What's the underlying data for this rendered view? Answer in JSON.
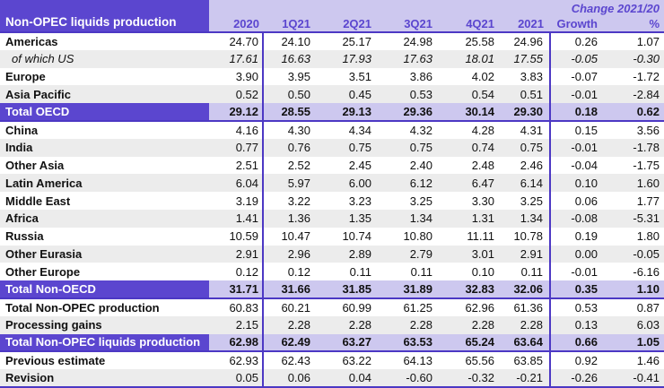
{
  "chart_data": {
    "type": "table",
    "title": "Non-OPEC liquids production",
    "change_group_header": "Change 2021/20",
    "columns": [
      "2020",
      "1Q21",
      "2Q21",
      "3Q21",
      "4Q21",
      "2021",
      "Growth",
      "%"
    ],
    "rows": [
      {
        "label": "Americas",
        "variant": "plain",
        "sep_after": false,
        "values": [
          "24.70",
          "24.10",
          "25.17",
          "24.98",
          "25.58",
          "24.96",
          "0.26",
          "1.07"
        ]
      },
      {
        "label": "of which US",
        "variant": "italic-shaded",
        "sep_after": false,
        "values": [
          "17.61",
          "16.63",
          "17.93",
          "17.63",
          "18.01",
          "17.55",
          "-0.05",
          "-0.30"
        ]
      },
      {
        "label": "Europe",
        "variant": "plain",
        "sep_after": false,
        "values": [
          "3.90",
          "3.95",
          "3.51",
          "3.86",
          "4.02",
          "3.83",
          "-0.07",
          "-1.72"
        ]
      },
      {
        "label": "Asia Pacific",
        "variant": "shaded",
        "sep_after": false,
        "values": [
          "0.52",
          "0.50",
          "0.45",
          "0.53",
          "0.54",
          "0.51",
          "-0.01",
          "-2.84"
        ]
      },
      {
        "label": "Total OECD",
        "variant": "total",
        "sep_after": true,
        "values": [
          "29.12",
          "28.55",
          "29.13",
          "29.36",
          "30.14",
          "29.30",
          "0.18",
          "0.62"
        ]
      },
      {
        "label": "China",
        "variant": "plain",
        "sep_after": false,
        "values": [
          "4.16",
          "4.30",
          "4.34",
          "4.32",
          "4.28",
          "4.31",
          "0.15",
          "3.56"
        ]
      },
      {
        "label": "India",
        "variant": "shaded",
        "sep_after": false,
        "values": [
          "0.77",
          "0.76",
          "0.75",
          "0.75",
          "0.74",
          "0.75",
          "-0.01",
          "-1.78"
        ]
      },
      {
        "label": "Other Asia",
        "variant": "plain",
        "sep_after": false,
        "values": [
          "2.51",
          "2.52",
          "2.45",
          "2.40",
          "2.48",
          "2.46",
          "-0.04",
          "-1.75"
        ]
      },
      {
        "label": "Latin America",
        "variant": "shaded",
        "sep_after": false,
        "values": [
          "6.04",
          "5.97",
          "6.00",
          "6.12",
          "6.47",
          "6.14",
          "0.10",
          "1.60"
        ]
      },
      {
        "label": "Middle East",
        "variant": "plain",
        "sep_after": false,
        "values": [
          "3.19",
          "3.22",
          "3.23",
          "3.25",
          "3.30",
          "3.25",
          "0.06",
          "1.77"
        ]
      },
      {
        "label": "Africa",
        "variant": "shaded",
        "sep_after": false,
        "values": [
          "1.41",
          "1.36",
          "1.35",
          "1.34",
          "1.31",
          "1.34",
          "-0.08",
          "-5.31"
        ]
      },
      {
        "label": "Russia",
        "variant": "plain",
        "sep_after": false,
        "values": [
          "10.59",
          "10.47",
          "10.74",
          "10.80",
          "11.11",
          "10.78",
          "0.19",
          "1.80"
        ]
      },
      {
        "label": "Other Eurasia",
        "variant": "shaded",
        "sep_after": false,
        "values": [
          "2.91",
          "2.96",
          "2.89",
          "2.79",
          "3.01",
          "2.91",
          "0.00",
          "-0.05"
        ]
      },
      {
        "label": "Other Europe",
        "variant": "plain",
        "sep_after": false,
        "values": [
          "0.12",
          "0.12",
          "0.11",
          "0.11",
          "0.10",
          "0.11",
          "-0.01",
          "-6.16"
        ]
      },
      {
        "label": "Total Non-OECD",
        "variant": "total",
        "sep_after": true,
        "values": [
          "31.71",
          "31.66",
          "31.85",
          "31.89",
          "32.83",
          "32.06",
          "0.35",
          "1.10"
        ]
      },
      {
        "label": "Total Non-OPEC production",
        "variant": "plain",
        "sep_after": false,
        "values": [
          "60.83",
          "60.21",
          "60.99",
          "61.25",
          "62.96",
          "61.36",
          "0.53",
          "0.87"
        ]
      },
      {
        "label": "Processing gains",
        "variant": "shaded",
        "sep_after": false,
        "values": [
          "2.15",
          "2.28",
          "2.28",
          "2.28",
          "2.28",
          "2.28",
          "0.13",
          "6.03"
        ]
      },
      {
        "label": "Total Non-OPEC liquids production",
        "variant": "total",
        "sep_after": true,
        "values": [
          "62.98",
          "62.49",
          "63.27",
          "63.53",
          "65.24",
          "63.64",
          "0.66",
          "1.05"
        ]
      },
      {
        "label": "Previous estimate",
        "variant": "plain",
        "sep_after": false,
        "values": [
          "62.93",
          "62.43",
          "63.22",
          "64.13",
          "65.56",
          "63.85",
          "0.92",
          "1.46"
        ]
      },
      {
        "label": "Revision",
        "variant": "shaded",
        "sep_after": false,
        "values": [
          "0.05",
          "0.06",
          "0.04",
          "-0.60",
          "-0.32",
          "-0.21",
          "-0.26",
          "-0.41"
        ]
      }
    ]
  },
  "colors": {
    "accent": "#5b46cf",
    "line": "#4c38c4",
    "lavender": "#cdc8ef",
    "stripe": "#ececec"
  }
}
